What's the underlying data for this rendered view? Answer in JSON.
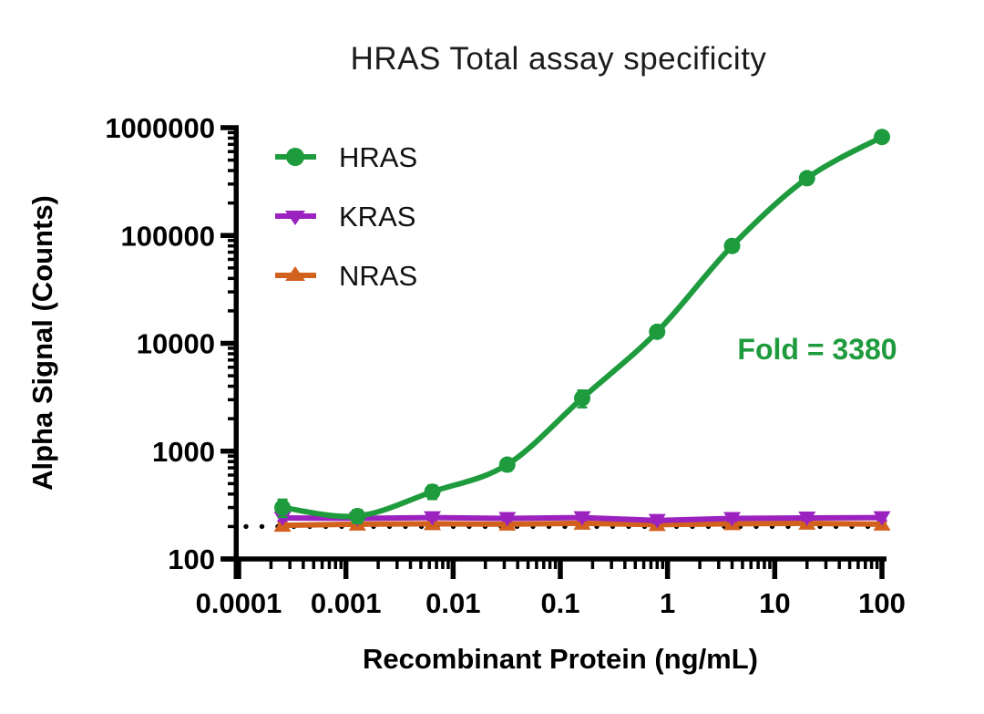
{
  "chart": {
    "title": "HRAS Total assay specificity",
    "xlabel": "Recombinant Protein (ng/mL)",
    "ylabel": "Alpha Signal (Counts)",
    "annotation": "Fold = 3380",
    "annotation_color": "#1e9b3d"
  },
  "chart_data": {
    "type": "line",
    "x_scale": "log",
    "y_scale": "log",
    "xlim": [
      0.0001,
      100
    ],
    "ylim": [
      100,
      1000000
    ],
    "grid": false,
    "legend_position": "upper-left-inside",
    "x_ticks": [
      "0.0001",
      "0.001",
      "0.01",
      "0.1",
      "1",
      "10",
      "100"
    ],
    "y_ticks": [
      "100",
      "1000",
      "10000",
      "100000",
      "1000000"
    ],
    "x": [
      0.000256,
      0.00128,
      0.0064,
      0.032,
      0.16,
      0.8,
      4,
      20,
      100
    ],
    "series": [
      {
        "name": "HRAS",
        "color": "#1e9b3d",
        "marker": "circle",
        "smooth": true,
        "values": [
          300,
          250,
          420,
          750,
          3100,
          12800,
          80000,
          340000,
          820000
        ],
        "errors": [
          55,
          35,
          60,
          90,
          550,
          700,
          4000,
          8000,
          15000
        ]
      },
      {
        "name": "KRAS",
        "color": "#9c22bf",
        "marker": "triangle-down",
        "smooth": false,
        "values": [
          240,
          238,
          242,
          238,
          242,
          228,
          238,
          240,
          242
        ],
        "errors": [
          14,
          12,
          12,
          12,
          14,
          12,
          14,
          12,
          14
        ]
      },
      {
        "name": "NRAS",
        "color": "#d2611e",
        "marker": "triangle-up",
        "smooth": false,
        "values": [
          205,
          210,
          212,
          210,
          214,
          208,
          212,
          214,
          210
        ],
        "errors": [
          12,
          10,
          10,
          10,
          12,
          10,
          12,
          10,
          12
        ]
      }
    ],
    "baseline": {
      "style": "dotted",
      "value": 200,
      "color": "#000000"
    }
  }
}
